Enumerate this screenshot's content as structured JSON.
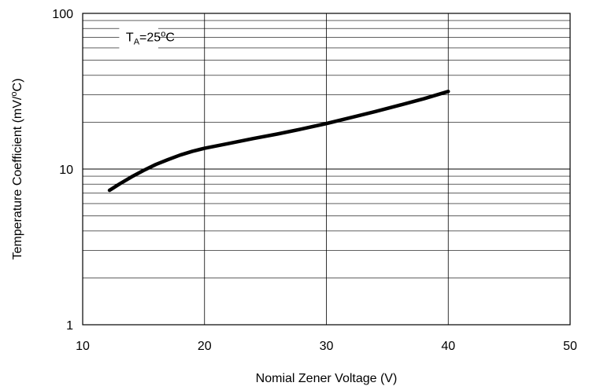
{
  "chart_data": {
    "type": "line",
    "title": "",
    "xlabel": "Nomial Zener Voltage (V)",
    "ylabel": "Temperature Coefficient (mV/°C)",
    "ylabel_parts": {
      "before": "Temperature Coefficient (mV/",
      "sup": "o",
      "after": "C)"
    },
    "xlim": [
      10,
      50
    ],
    "ylim": [
      1,
      100
    ],
    "yscale": "log",
    "grid": true,
    "x_ticks": [
      10,
      20,
      30,
      40,
      50
    ],
    "x_tick_labels": [
      "10",
      "20",
      "30",
      "40",
      "50"
    ],
    "y_ticks": [
      1,
      10,
      100
    ],
    "y_tick_labels": [
      "1",
      "10",
      "100"
    ],
    "annotation": {
      "main": "T",
      "sub": "A",
      "mid": "=25",
      "sup": "o",
      "end": "C"
    },
    "series": [
      {
        "color": "#000000",
        "x": [
          12.2,
          13,
          14,
          15,
          16,
          17,
          18,
          19,
          20,
          22,
          24,
          26,
          28,
          30,
          32,
          34,
          36,
          38,
          40
        ],
        "y": [
          7.3,
          8.0,
          8.9,
          9.8,
          10.7,
          11.5,
          12.3,
          13.0,
          13.6,
          14.6,
          15.7,
          16.8,
          18.1,
          19.6,
          21.4,
          23.4,
          25.7,
          28.3,
          31.5
        ]
      }
    ]
  }
}
